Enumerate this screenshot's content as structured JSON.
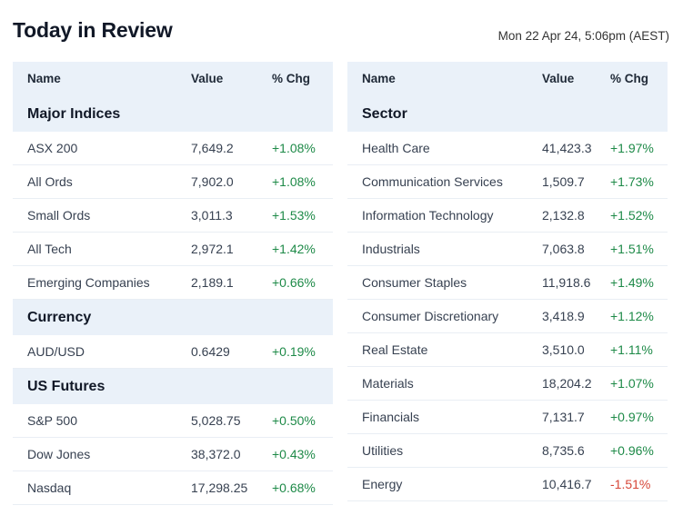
{
  "header": {
    "title": "Today in Review",
    "timestamp": "Mon 22 Apr 24, 5:06pm (AEST)"
  },
  "left_table": {
    "columns": [
      "Name",
      "Value",
      "% Chg"
    ],
    "groups": [
      {
        "title": "Major Indices",
        "rows": [
          {
            "name": "ASX 200",
            "value": "7,649.2",
            "chg": "+1.08%"
          },
          {
            "name": "All Ords",
            "value": "7,902.0",
            "chg": "+1.08%"
          },
          {
            "name": "Small Ords",
            "value": "3,011.3",
            "chg": "+1.53%"
          },
          {
            "name": "All Tech",
            "value": "2,972.1",
            "chg": "+1.42%"
          },
          {
            "name": "Emerging Companies",
            "value": "2,189.1",
            "chg": "+0.66%"
          }
        ]
      },
      {
        "title": "Currency",
        "rows": [
          {
            "name": "AUD/USD",
            "value": "0.6429",
            "chg": "+0.19%"
          }
        ]
      },
      {
        "title": "US Futures",
        "rows": [
          {
            "name": "S&P 500",
            "value": "5,028.75",
            "chg": "+0.50%"
          },
          {
            "name": "Dow Jones",
            "value": "38,372.0",
            "chg": "+0.43%"
          },
          {
            "name": "Nasdaq",
            "value": "17,298.25",
            "chg": "+0.68%"
          }
        ]
      }
    ]
  },
  "right_table": {
    "columns": [
      "Name",
      "Value",
      "% Chg"
    ],
    "groups": [
      {
        "title": "Sector",
        "rows": [
          {
            "name": "Health Care",
            "value": "41,423.3",
            "chg": "+1.97%"
          },
          {
            "name": "Communication Services",
            "value": "1,509.7",
            "chg": "+1.73%"
          },
          {
            "name": "Information Technology",
            "value": "2,132.8",
            "chg": "+1.52%"
          },
          {
            "name": "Industrials",
            "value": "7,063.8",
            "chg": "+1.51%"
          },
          {
            "name": "Consumer Staples",
            "value": "11,918.6",
            "chg": "+1.49%"
          },
          {
            "name": "Consumer Discretionary",
            "value": "3,418.9",
            "chg": "+1.12%"
          },
          {
            "name": "Real Estate",
            "value": "3,510.0",
            "chg": "+1.11%"
          },
          {
            "name": "Materials",
            "value": "18,204.2",
            "chg": "+1.07%"
          },
          {
            "name": "Financials",
            "value": "7,131.7",
            "chg": "+0.97%"
          },
          {
            "name": "Utilities",
            "value": "8,735.6",
            "chg": "+0.96%"
          },
          {
            "name": "Energy",
            "value": "10,416.7",
            "chg": "-1.51%"
          }
        ]
      }
    ]
  },
  "colors": {
    "positive": "#1e8a48",
    "negative": "#d64537",
    "header_bg": "#eaf1f9"
  }
}
